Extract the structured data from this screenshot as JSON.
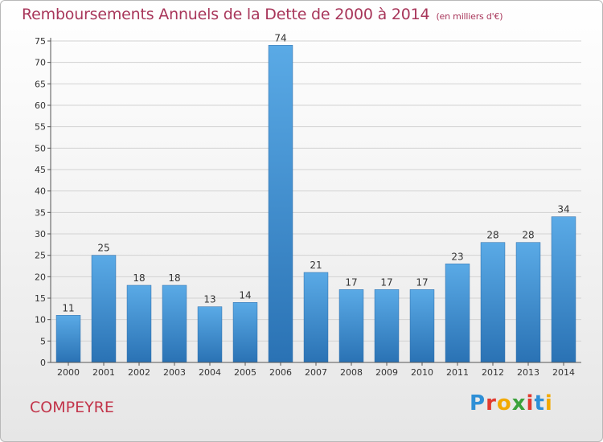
{
  "header": {
    "title": "Remboursements Annuels de la Dette de 2000 à 2014",
    "unit": "(en milliers d'€)"
  },
  "footer": {
    "commune": "COMPEYRE",
    "logo": "Proxiti",
    "logo_colors": [
      "#2e8fd6",
      "#e23a2f",
      "#f2a900",
      "#3aa13a",
      "#e23a2f",
      "#2e8fd6",
      "#f2a900"
    ]
  },
  "chart_data": {
    "type": "bar",
    "title": "Remboursements Annuels de la Dette de 2000 à 2014",
    "categories": [
      "2000",
      "2001",
      "2002",
      "2003",
      "2004",
      "2005",
      "2006",
      "2007",
      "2008",
      "2009",
      "2010",
      "2011",
      "2012",
      "2013",
      "2014"
    ],
    "values": [
      11,
      25,
      18,
      18,
      13,
      14,
      74,
      21,
      17,
      17,
      17,
      23,
      28,
      28,
      34
    ],
    "ylim": [
      0,
      75
    ],
    "yticks": [
      0,
      5,
      10,
      15,
      20,
      25,
      30,
      35,
      40,
      45,
      50,
      55,
      60,
      65,
      70,
      75
    ],
    "grid": true,
    "bar_color_top": "#5aaae6",
    "bar_color_bottom": "#2a72b4"
  }
}
